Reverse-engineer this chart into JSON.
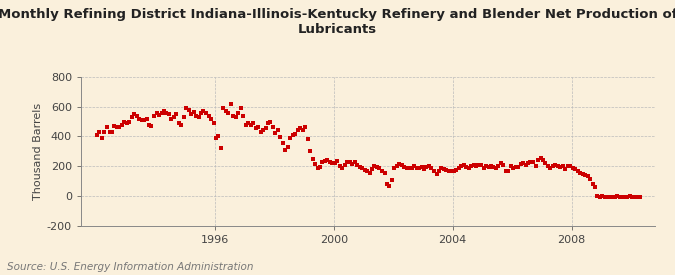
{
  "title": "Monthly Refining District Indiana-Illinois-Kentucky Refinery and Blender Net Production of\nLubricants",
  "ylabel": "Thousand Barrels",
  "source": "Source: U.S. Energy Information Administration",
  "background_color": "#FAF0DC",
  "dot_color": "#CC0000",
  "ylim": [
    -200,
    800
  ],
  "yticks": [
    -200,
    0,
    200,
    400,
    600,
    800
  ],
  "xlim": [
    1991.5,
    2010.8
  ],
  "xticks": [
    1996,
    2000,
    2004,
    2008
  ],
  "grid_color": "#BBBBBB",
  "title_fontsize": 9.5,
  "ylabel_fontsize": 8,
  "tick_fontsize": 8,
  "source_fontsize": 7.5,
  "raw_data": [
    [
      1992.04,
      410
    ],
    [
      1992.12,
      430
    ],
    [
      1992.21,
      390
    ],
    [
      1992.29,
      430
    ],
    [
      1992.37,
      460
    ],
    [
      1992.46,
      430
    ],
    [
      1992.54,
      430
    ],
    [
      1992.62,
      470
    ],
    [
      1992.71,
      460
    ],
    [
      1992.79,
      460
    ],
    [
      1992.87,
      480
    ],
    [
      1992.96,
      500
    ],
    [
      1993.04,
      490
    ],
    [
      1993.12,
      500
    ],
    [
      1993.21,
      530
    ],
    [
      1993.29,
      550
    ],
    [
      1993.37,
      540
    ],
    [
      1993.46,
      520
    ],
    [
      1993.54,
      510
    ],
    [
      1993.62,
      510
    ],
    [
      1993.71,
      520
    ],
    [
      1993.79,
      480
    ],
    [
      1993.87,
      470
    ],
    [
      1993.96,
      540
    ],
    [
      1994.04,
      560
    ],
    [
      1994.12,
      545
    ],
    [
      1994.21,
      560
    ],
    [
      1994.29,
      570
    ],
    [
      1994.37,
      555
    ],
    [
      1994.46,
      550
    ],
    [
      1994.54,
      520
    ],
    [
      1994.62,
      530
    ],
    [
      1994.71,
      550
    ],
    [
      1994.79,
      490
    ],
    [
      1994.87,
      480
    ],
    [
      1994.96,
      530
    ],
    [
      1995.04,
      590
    ],
    [
      1995.12,
      580
    ],
    [
      1995.21,
      550
    ],
    [
      1995.29,
      565
    ],
    [
      1995.37,
      540
    ],
    [
      1995.46,
      530
    ],
    [
      1995.54,
      560
    ],
    [
      1995.62,
      570
    ],
    [
      1995.71,
      555
    ],
    [
      1995.79,
      535
    ],
    [
      1995.87,
      520
    ],
    [
      1995.96,
      490
    ],
    [
      1996.04,
      390
    ],
    [
      1996.12,
      400
    ],
    [
      1996.21,
      325
    ],
    [
      1996.29,
      590
    ],
    [
      1996.37,
      570
    ],
    [
      1996.46,
      560
    ],
    [
      1996.54,
      615
    ],
    [
      1996.62,
      540
    ],
    [
      1996.71,
      530
    ],
    [
      1996.79,
      560
    ],
    [
      1996.87,
      590
    ],
    [
      1996.96,
      540
    ],
    [
      1997.04,
      480
    ],
    [
      1997.12,
      490
    ],
    [
      1997.21,
      480
    ],
    [
      1997.29,
      490
    ],
    [
      1997.37,
      455
    ],
    [
      1997.46,
      460
    ],
    [
      1997.54,
      430
    ],
    [
      1997.62,
      445
    ],
    [
      1997.71,
      455
    ],
    [
      1997.79,
      490
    ],
    [
      1997.87,
      500
    ],
    [
      1997.96,
      460
    ],
    [
      1998.04,
      420
    ],
    [
      1998.12,
      440
    ],
    [
      1998.21,
      395
    ],
    [
      1998.29,
      355
    ],
    [
      1998.37,
      310
    ],
    [
      1998.46,
      330
    ],
    [
      1998.54,
      390
    ],
    [
      1998.62,
      410
    ],
    [
      1998.71,
      415
    ],
    [
      1998.79,
      440
    ],
    [
      1998.87,
      455
    ],
    [
      1998.96,
      445
    ],
    [
      1999.04,
      460
    ],
    [
      1999.12,
      380
    ],
    [
      1999.21,
      305
    ],
    [
      1999.29,
      250
    ],
    [
      1999.37,
      215
    ],
    [
      1999.46,
      185
    ],
    [
      1999.54,
      195
    ],
    [
      1999.62,
      225
    ],
    [
      1999.71,
      235
    ],
    [
      1999.79,
      240
    ],
    [
      1999.87,
      230
    ],
    [
      1999.96,
      220
    ],
    [
      2000.04,
      220
    ],
    [
      2000.12,
      235
    ],
    [
      2000.21,
      200
    ],
    [
      2000.29,
      185
    ],
    [
      2000.37,
      210
    ],
    [
      2000.46,
      225
    ],
    [
      2000.54,
      225
    ],
    [
      2000.62,
      215
    ],
    [
      2000.71,
      230
    ],
    [
      2000.79,
      210
    ],
    [
      2000.87,
      195
    ],
    [
      2000.96,
      185
    ],
    [
      2001.04,
      175
    ],
    [
      2001.12,
      165
    ],
    [
      2001.21,
      155
    ],
    [
      2001.29,
      180
    ],
    [
      2001.37,
      200
    ],
    [
      2001.46,
      195
    ],
    [
      2001.54,
      185
    ],
    [
      2001.62,
      170
    ],
    [
      2001.71,
      155
    ],
    [
      2001.79,
      80
    ],
    [
      2001.87,
      65
    ],
    [
      2001.96,
      105
    ],
    [
      2002.04,
      185
    ],
    [
      2002.12,
      200
    ],
    [
      2002.21,
      215
    ],
    [
      2002.29,
      205
    ],
    [
      2002.37,
      195
    ],
    [
      2002.46,
      190
    ],
    [
      2002.54,
      185
    ],
    [
      2002.62,
      190
    ],
    [
      2002.71,
      200
    ],
    [
      2002.79,
      190
    ],
    [
      2002.87,
      185
    ],
    [
      2002.96,
      195
    ],
    [
      2003.04,
      180
    ],
    [
      2003.12,
      195
    ],
    [
      2003.21,
      200
    ],
    [
      2003.29,
      190
    ],
    [
      2003.37,
      170
    ],
    [
      2003.46,
      150
    ],
    [
      2003.54,
      170
    ],
    [
      2003.62,
      185
    ],
    [
      2003.71,
      180
    ],
    [
      2003.79,
      175
    ],
    [
      2003.87,
      165
    ],
    [
      2003.96,
      170
    ],
    [
      2004.04,
      165
    ],
    [
      2004.12,
      175
    ],
    [
      2004.21,
      185
    ],
    [
      2004.29,
      200
    ],
    [
      2004.37,
      205
    ],
    [
      2004.46,
      195
    ],
    [
      2004.54,
      190
    ],
    [
      2004.62,
      200
    ],
    [
      2004.71,
      205
    ],
    [
      2004.79,
      200
    ],
    [
      2004.87,
      210
    ],
    [
      2004.96,
      205
    ],
    [
      2005.04,
      190
    ],
    [
      2005.12,
      200
    ],
    [
      2005.21,
      195
    ],
    [
      2005.29,
      200
    ],
    [
      2005.37,
      195
    ],
    [
      2005.46,
      190
    ],
    [
      2005.54,
      200
    ],
    [
      2005.62,
      220
    ],
    [
      2005.71,
      210
    ],
    [
      2005.79,
      170
    ],
    [
      2005.87,
      165
    ],
    [
      2005.96,
      200
    ],
    [
      2006.04,
      185
    ],
    [
      2006.12,
      195
    ],
    [
      2006.21,
      195
    ],
    [
      2006.29,
      215
    ],
    [
      2006.37,
      220
    ],
    [
      2006.46,
      210
    ],
    [
      2006.54,
      220
    ],
    [
      2006.62,
      230
    ],
    [
      2006.71,
      225
    ],
    [
      2006.79,
      200
    ],
    [
      2006.87,
      240
    ],
    [
      2006.96,
      255
    ],
    [
      2007.04,
      240
    ],
    [
      2007.12,
      220
    ],
    [
      2007.21,
      200
    ],
    [
      2007.29,
      190
    ],
    [
      2007.37,
      200
    ],
    [
      2007.46,
      210
    ],
    [
      2007.54,
      200
    ],
    [
      2007.62,
      195
    ],
    [
      2007.71,
      200
    ],
    [
      2007.79,
      180
    ],
    [
      2007.87,
      200
    ],
    [
      2007.96,
      200
    ],
    [
      2008.04,
      190
    ],
    [
      2008.12,
      180
    ],
    [
      2008.21,
      165
    ],
    [
      2008.29,
      155
    ],
    [
      2008.37,
      145
    ],
    [
      2008.46,
      140
    ],
    [
      2008.54,
      130
    ],
    [
      2008.62,
      115
    ],
    [
      2008.71,
      80
    ],
    [
      2008.79,
      60
    ],
    [
      2008.87,
      0
    ],
    [
      2008.96,
      -10
    ],
    [
      2009.04,
      0
    ],
    [
      2009.12,
      -5
    ],
    [
      2009.21,
      -10
    ],
    [
      2009.29,
      -10
    ],
    [
      2009.37,
      -10
    ],
    [
      2009.46,
      -5
    ],
    [
      2009.54,
      0
    ],
    [
      2009.62,
      -10
    ],
    [
      2009.71,
      -10
    ],
    [
      2009.79,
      -10
    ],
    [
      2009.87,
      -5
    ],
    [
      2009.96,
      0
    ],
    [
      2010.04,
      -10
    ],
    [
      2010.12,
      -10
    ],
    [
      2010.21,
      -10
    ],
    [
      2010.29,
      -10
    ]
  ]
}
